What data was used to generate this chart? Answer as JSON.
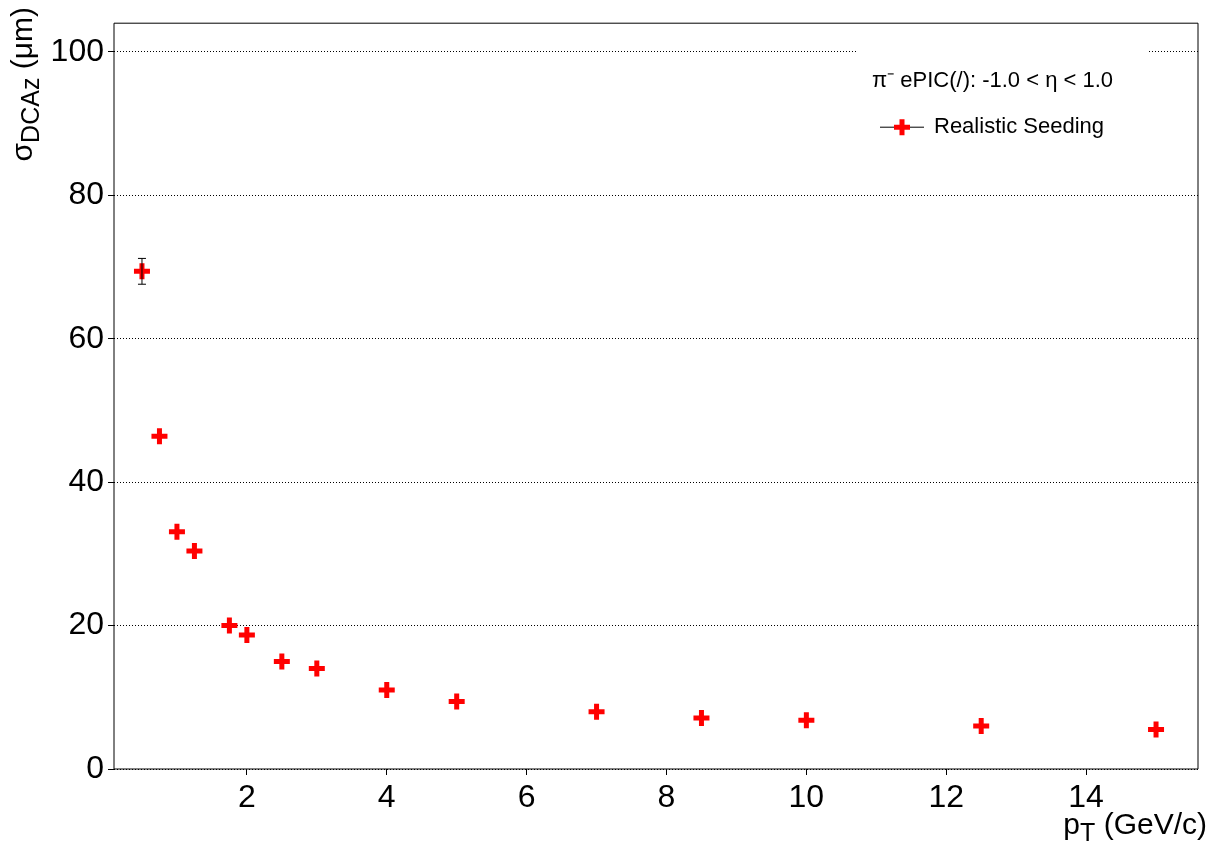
{
  "chart_data": {
    "type": "scatter",
    "xlabel": "p$_{T}$ (GeV/c)",
    "ylabel": "σ$_{DCA}$$_{z}$ (μm)",
    "legend_title": "π⁻ ePIC(/): -1.0 < η < 1.0",
    "x": [
      0.5,
      0.75,
      1.0,
      1.25,
      1.75,
      2.0,
      2.5,
      3.0,
      4.0,
      5.0,
      7.0,
      8.5,
      10.0,
      12.5,
      15.0
    ],
    "series": [
      {
        "name": "Realistic Seeding",
        "color": "#ff0000",
        "values": [
          69.4,
          46.4,
          33.1,
          30.4,
          20.0,
          18.7,
          15.0,
          14.0,
          11.0,
          9.4,
          8.0,
          7.1,
          6.8,
          6.0,
          5.5
        ],
        "errors": [
          1.8,
          null,
          null,
          null,
          null,
          null,
          null,
          null,
          null,
          null,
          null,
          null,
          null,
          null,
          null
        ]
      }
    ],
    "xlim": [
      0.1,
      15.6
    ],
    "xticks": [
      2,
      4,
      6,
      8,
      10,
      12,
      14
    ],
    "ylim": [
      0,
      104
    ],
    "yticks": [
      0,
      20,
      40,
      60,
      80,
      100
    ],
    "grid": "y",
    "legend": "top right",
    "marker": "cross"
  }
}
